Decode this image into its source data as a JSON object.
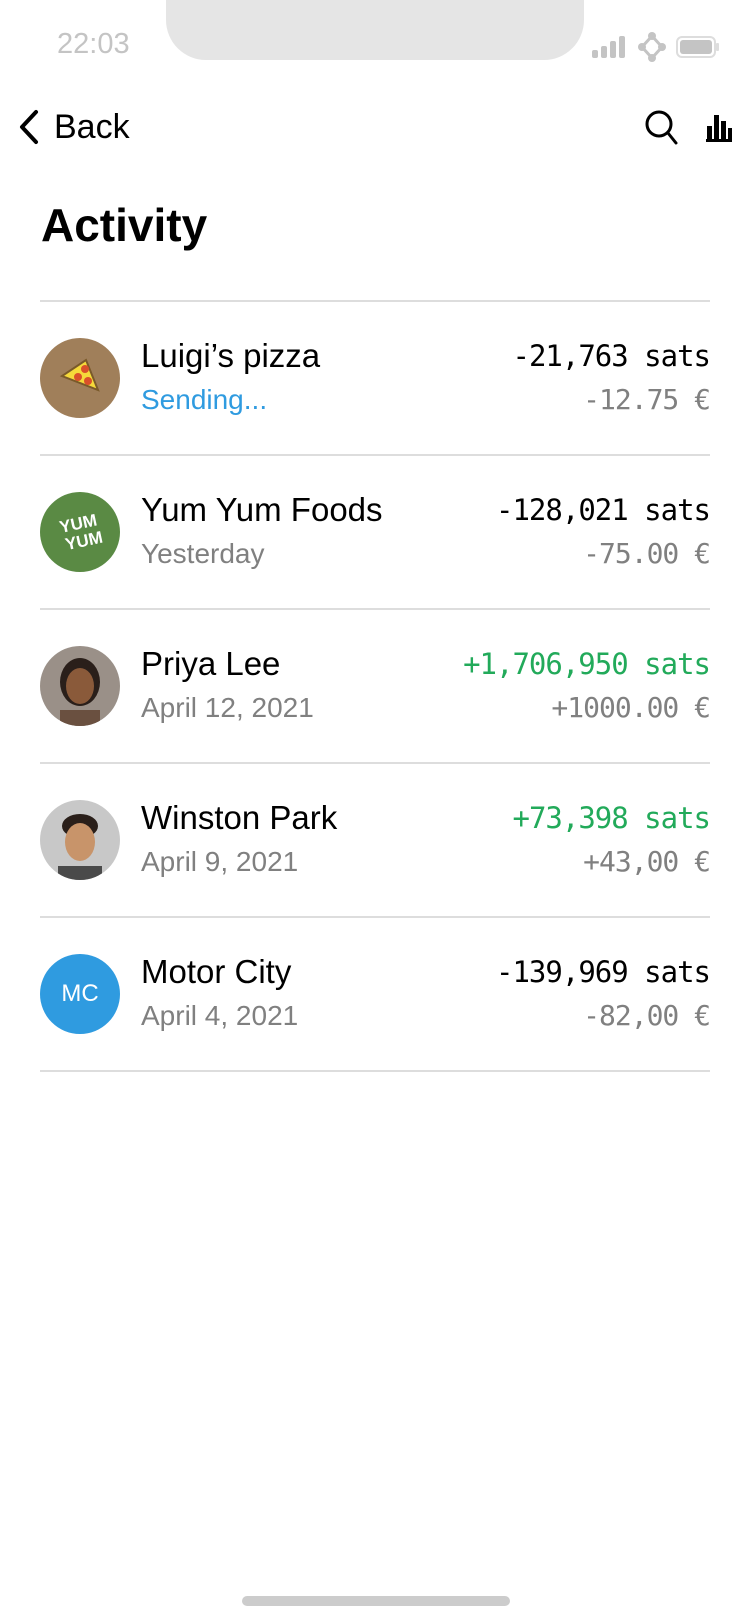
{
  "status_bar": {
    "time": "22:03"
  },
  "nav": {
    "back_label": "Back",
    "icons": [
      "search-icon",
      "bar-chart-icon"
    ]
  },
  "page": {
    "title": "Activity"
  },
  "colors": {
    "accent": "#2f9be0",
    "positive": "#22aa5a",
    "muted": "#808080"
  },
  "transactions": [
    {
      "name": "Luigi’s pizza",
      "subtitle": "Sending...",
      "sats": "-21,763 sats",
      "fiat": "-12.75 €",
      "avatar": "pizza-icon",
      "avatar_color": "#a07f5a",
      "positive": false,
      "sending": true
    },
    {
      "name": "Yum Yum Foods",
      "subtitle": "Yesterday",
      "sats": "-128,021 sats",
      "fiat": "-75.00 €",
      "avatar": "YUM YUM",
      "avatar_color": "#5a8a44",
      "positive": false
    },
    {
      "name": "Priya Lee",
      "subtitle": "April 12, 2021",
      "sats": "+1,706,950 sats",
      "fiat": "+1000.00 €",
      "avatar": "photo",
      "avatar_color": "#8a7a6a",
      "positive": true
    },
    {
      "name": "Winston Park",
      "subtitle": "April 9, 2021",
      "sats": "+73,398 sats",
      "fiat": "+43,00 €",
      "avatar": "photo",
      "avatar_color": "#b8a08a",
      "positive": true
    },
    {
      "name": "Motor City",
      "subtitle": "April 4, 2021",
      "sats": "-139,969 sats",
      "fiat": "-82,00 €",
      "avatar": "MC",
      "avatar_color": "#2f9be0",
      "positive": false
    }
  ]
}
